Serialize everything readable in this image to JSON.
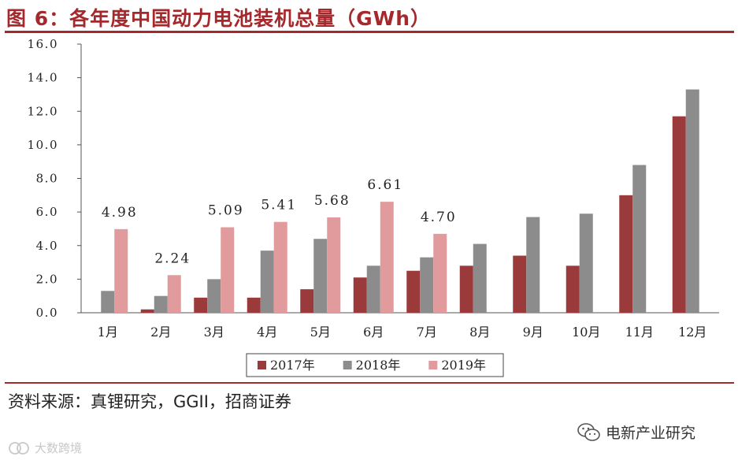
{
  "header": {
    "title": "图 6：各年度中国动力电池装机总量（GWh）"
  },
  "footer": {
    "source": "资料来源：真锂研究，GGII，招商证券",
    "wechat_account": "电新产业研究",
    "watermark": "大数跨境"
  },
  "colors": {
    "accent": "#a5292c",
    "s2017": "#9b3a3a",
    "s2018": "#8c8c8c",
    "s2019": "#e19b9d"
  },
  "chart_data": {
    "type": "bar",
    "title": "各年度中国动力电池装机总量（GWh）",
    "xlabel": "",
    "ylabel": "",
    "ylim": [
      0,
      16
    ],
    "yticks": [
      "0.0",
      "2.0",
      "4.0",
      "6.0",
      "8.0",
      "10.0",
      "12.0",
      "14.0",
      "16.0"
    ],
    "categories": [
      "1月",
      "2月",
      "3月",
      "4月",
      "5月",
      "6月",
      "7月",
      "8月",
      "9月",
      "10月",
      "11月",
      "12月"
    ],
    "series": [
      {
        "name": "2017年",
        "values": [
          0.0,
          0.2,
          0.9,
          0.9,
          1.4,
          2.1,
          2.5,
          2.8,
          3.4,
          2.8,
          7.0,
          11.7
        ]
      },
      {
        "name": "2018年",
        "values": [
          1.3,
          1.0,
          2.0,
          3.7,
          4.4,
          2.8,
          3.3,
          4.1,
          5.7,
          5.9,
          8.8,
          13.3
        ]
      },
      {
        "name": "2019年",
        "values": [
          4.98,
          2.24,
          5.09,
          5.41,
          5.68,
          6.61,
          4.7,
          null,
          null,
          null,
          null,
          null
        ]
      }
    ],
    "data_labels": [
      "4.98",
      "2.24",
      "5.09",
      "5.41",
      "5.68",
      "6.61",
      "4.70"
    ],
    "legend": {
      "position": "bottom",
      "entries": [
        "2017年",
        "2018年",
        "2019年"
      ]
    },
    "grid": false
  }
}
